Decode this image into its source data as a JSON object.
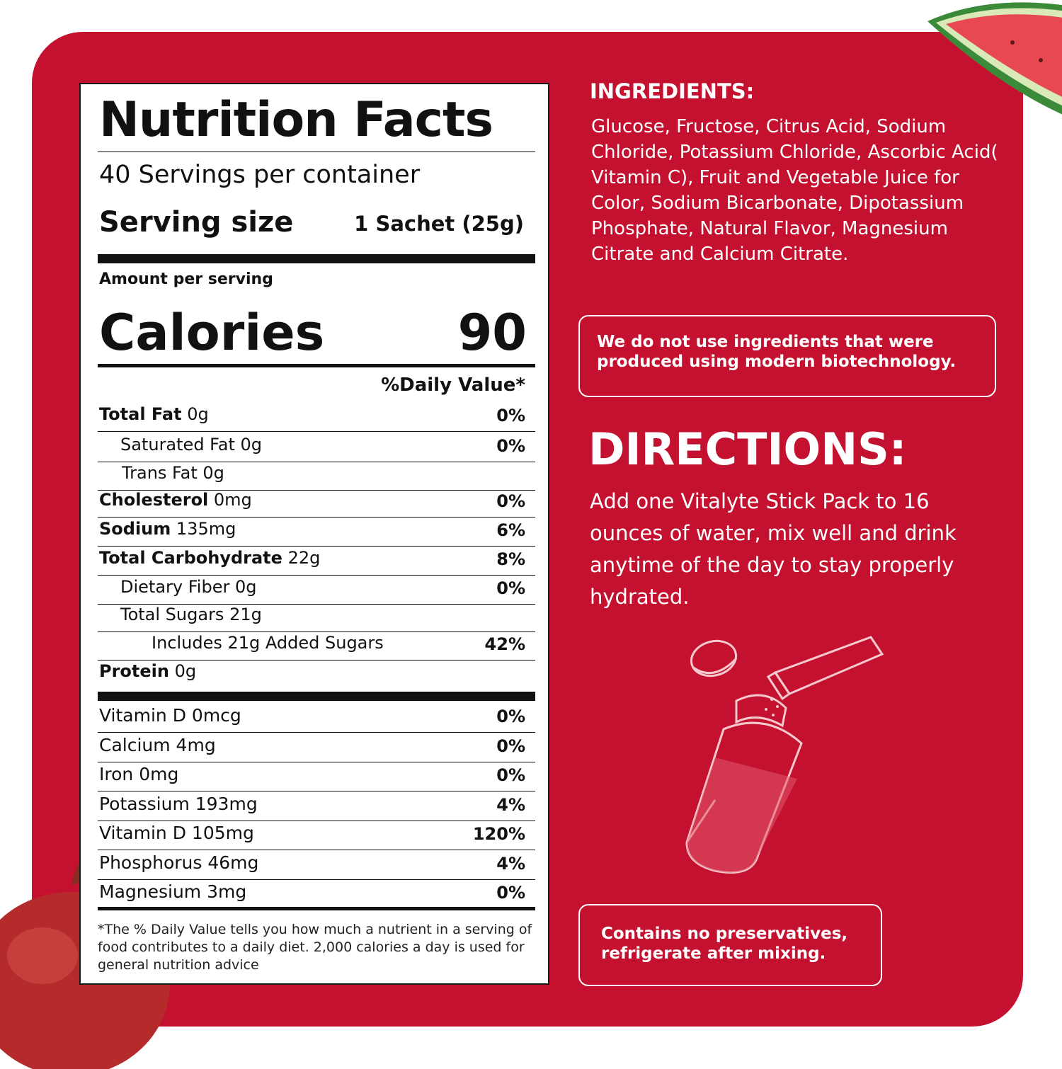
{
  "colors": {
    "panel": "#c4112f",
    "label_bg": "#ffffff",
    "text_dark": "#111111",
    "text_light": "#ffffff"
  },
  "icons": [
    "watermelon-slice-icon",
    "pomegranate-icon",
    "bottle-and-stick-pack-icon"
  ],
  "nutrition": {
    "title": "Nutrition Facts",
    "servings": "40 Servings per container",
    "serving_size_label": "Serving size",
    "serving_size_value": "1 Sachet (25g)",
    "amount_per_serving": "Amount per serving",
    "calories_label": "Calories",
    "calories_value": "90",
    "dv_header": "%Daily Value*",
    "rows": [
      {
        "bold": "Total Fat",
        "rest": " 0g",
        "pct": "0%"
      },
      {
        "bold": "",
        "rest": "Saturated Fat 0g",
        "pct": "0%"
      },
      {
        "bold": "",
        "rest": "Trans Fat 0g",
        "pct": ""
      },
      {
        "bold": "Cholesterol",
        "rest": " 0mg",
        "pct": "0%"
      },
      {
        "bold": "Sodium",
        "rest": " 135mg",
        "pct": "6%"
      },
      {
        "bold": "Total Carbohydrate",
        "rest": " 22g",
        "pct": "8%"
      },
      {
        "bold": "",
        "rest": "Dietary Fiber 0g",
        "pct": "0%"
      },
      {
        "bold": "",
        "rest": "Total Sugars 21g",
        "pct": ""
      },
      {
        "bold": "",
        "rest": "Includes 21g Added Sugars",
        "pct": "42%"
      },
      {
        "bold": "Protein",
        "rest": " 0g",
        "pct": ""
      }
    ],
    "vitamins": [
      {
        "name": "Vitamin D 0mcg",
        "pct": "0%"
      },
      {
        "name": "Calcium 4mg",
        "pct": "0%"
      },
      {
        "name": "Iron 0mg",
        "pct": "0%"
      },
      {
        "name": "Potassium 193mg",
        "pct": "4%"
      },
      {
        "name": "Vitamin D 105mg",
        "pct": "120%"
      },
      {
        "name": "Phosphorus 46mg",
        "pct": "4%"
      },
      {
        "name": "Magnesium 3mg",
        "pct": "0%"
      }
    ],
    "footnote": "*The % Daily Value tells you how much a nutrient in a serving of food contributes to a daily diet. 2,000 calories a day is used for general nutrition advice"
  },
  "ingredients": {
    "heading": "INGREDIENTS:",
    "text": "Glucose, Fructose, Citrus Acid, Sodium Chloride, Potassium Chloride, Ascorbic Acid( Vitamin C), Fruit and Vegetable Juice for Color, Sodium Bicarbonate, Dipotassium Phosphate, Natural Flavor, Magnesium Citrate and Calcium Citrate."
  },
  "biotech_note": "We do not use ingredients that were produced using modern biotechnology.",
  "directions": {
    "heading": "DIRECTIONS:",
    "text": "Add one Vitalyte Stick Pack to 16 ounces of water, mix well and drink anytime of the day to stay properly hydrated."
  },
  "preservatives_note": "Contains no preservatives, refrigerate after mixing."
}
